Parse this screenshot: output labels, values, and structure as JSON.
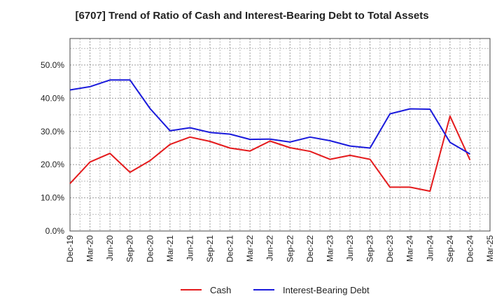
{
  "chart_data": {
    "type": "line",
    "title": "[6707]  Trend of Ratio of Cash and Interest-Bearing Debt to Total Assets",
    "xlabel": "",
    "ylabel": "",
    "categories": [
      "Dec-19",
      "Mar-20",
      "Jun-20",
      "Sep-20",
      "Dec-20",
      "Mar-21",
      "Jun-21",
      "Sep-21",
      "Dec-21",
      "Mar-22",
      "Jun-22",
      "Sep-22",
      "Dec-22",
      "Mar-23",
      "Jun-23",
      "Sep-23",
      "Dec-23",
      "Mar-24",
      "Jun-24",
      "Sep-24",
      "Dec-24",
      "Mar-25"
    ],
    "ylim": [
      0,
      58
    ],
    "y_ticks": [
      0,
      10,
      20,
      30,
      40,
      50
    ],
    "y_tick_labels": [
      "0.0%",
      "10.0%",
      "20.0%",
      "30.0%",
      "40.0%",
      "50.0%"
    ],
    "grid": true,
    "legend_position": "bottom",
    "series": [
      {
        "name": "Cash",
        "color": "#e41a1c",
        "values": [
          14.3,
          20.8,
          23.4,
          17.7,
          21.2,
          26.1,
          28.3,
          27.0,
          25.0,
          24.1,
          27.1,
          25.1,
          24.0,
          21.6,
          22.8,
          21.6,
          13.2,
          13.2,
          12.0,
          34.6,
          21.4,
          null
        ]
      },
      {
        "name": "Interest-Bearing Debt",
        "color": "#1a1adc",
        "values": [
          42.5,
          43.5,
          45.5,
          45.5,
          36.9,
          30.2,
          31.1,
          29.7,
          29.2,
          27.6,
          27.7,
          26.8,
          28.3,
          27.2,
          25.6,
          25.0,
          35.3,
          36.8,
          36.7,
          26.7,
          23.2,
          null
        ]
      }
    ]
  }
}
